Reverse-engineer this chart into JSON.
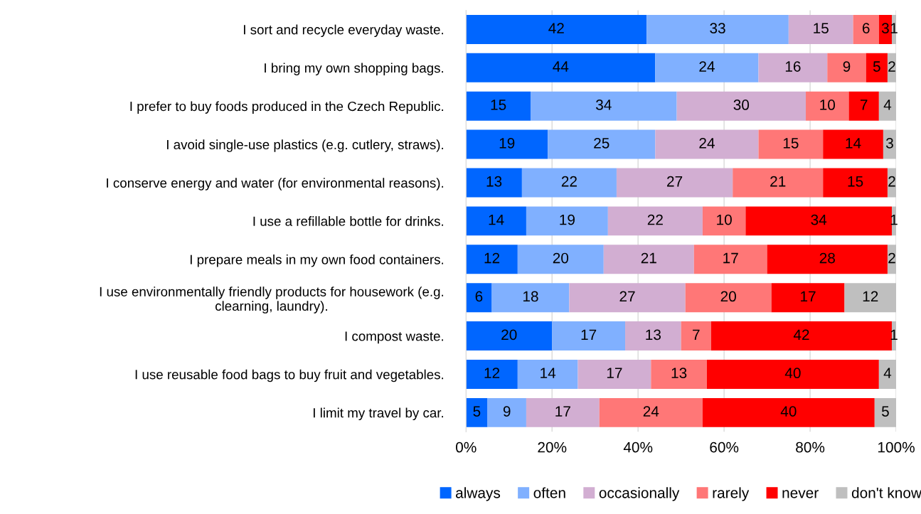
{
  "chart_data": {
    "type": "bar",
    "orientation": "horizontal",
    "stacked": true,
    "data_labels": true,
    "grid": "x",
    "legend": "bottom",
    "categories": [
      "I sort and recycle everyday waste.",
      "I bring my own shopping bags.",
      "I prefer to buy foods produced in the Czech Republic.",
      "I avoid single-use plastics (e.g. cutlery, straws).",
      "I conserve energy and water (for environmental reasons).",
      "I use a refillable bottle for drinks.",
      "I prepare meals in my own food containers.",
      "I use environmentally friendly products for housework (e.g.\nclearning, laundry).",
      "I compost waste.",
      "I use reusable food bags to buy fruit and vegetables.",
      "I limit my travel by car."
    ],
    "series": [
      {
        "name": "always",
        "color": "#0066ff",
        "values": [
          42,
          44,
          15,
          19,
          13,
          14,
          12,
          6,
          20,
          12,
          5
        ]
      },
      {
        "name": "often",
        "color": "#80b0ff",
        "values": [
          33,
          24,
          34,
          25,
          22,
          19,
          20,
          18,
          17,
          14,
          9
        ]
      },
      {
        "name": "occasionally",
        "color": "#d2aed2",
        "values": [
          15,
          16,
          30,
          24,
          27,
          22,
          21,
          27,
          13,
          17,
          17
        ]
      },
      {
        "name": "rarely",
        "color": "#ff7777",
        "values": [
          6,
          9,
          10,
          15,
          21,
          10,
          17,
          20,
          7,
          13,
          24
        ]
      },
      {
        "name": "never",
        "color": "#ff0000",
        "values": [
          3,
          5,
          7,
          14,
          15,
          34,
          28,
          17,
          42,
          40,
          40
        ]
      },
      {
        "name": "don't know",
        "color": "#bfbfbf",
        "values": [
          1,
          2,
          4,
          3,
          2,
          1,
          2,
          12,
          1,
          4,
          5
        ]
      }
    ],
    "xlim": [
      0,
      100
    ],
    "xticks": [
      {
        "value": 0,
        "label": "0%"
      },
      {
        "value": 20,
        "label": "20%"
      },
      {
        "value": 40,
        "label": "40%"
      },
      {
        "value": 60,
        "label": "60%"
      },
      {
        "value": 80,
        "label": "80%"
      },
      {
        "value": 100,
        "label": "100%"
      }
    ]
  }
}
